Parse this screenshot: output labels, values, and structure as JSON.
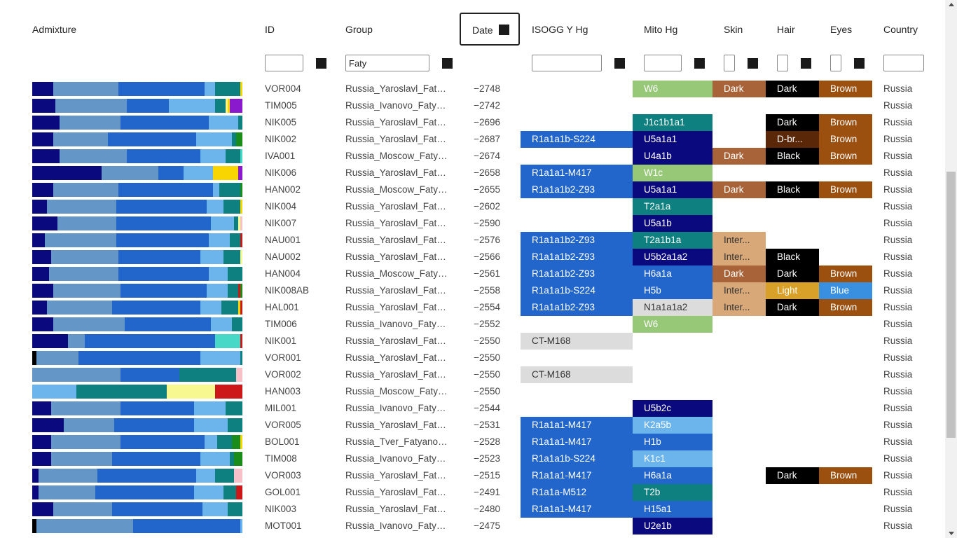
{
  "headers": {
    "admixture": "Admixture",
    "id": "ID",
    "group": "Group",
    "date": "Date",
    "ysogg": "ISOGG Y Hg",
    "mito": "Mito Hg",
    "skin": "Skin",
    "hair": "Hair",
    "eyes": "Eyes",
    "country": "Country"
  },
  "filters": {
    "id": "",
    "group": "Faty",
    "y": "",
    "mito": "",
    "skin": "",
    "hair": "",
    "eyes": "",
    "country": ""
  },
  "colors": {
    "navy": "#0a0a7e",
    "steel": "#6496c8",
    "royal": "#2266cc",
    "sky": "#6cb4ec",
    "teal": "#0e8080",
    "yellow": "#f8d400",
    "green": "#1a8c1a",
    "purple": "#8a18cc",
    "red": "#cc1818",
    "pink": "#f8c0c8",
    "lightyellow": "#f8f890",
    "turquoise": "#48d8c8",
    "black": "#000000",
    "mito_green": "#96c878",
    "skin_dark": "#a86438",
    "skin_inter": "#d8a878",
    "eye_brown": "#9c5010",
    "eye_blue": "#3a90e0",
    "hair_dbrown": "#5a2808",
    "hair_light": "#d8a028",
    "grey": "#dcdcdc"
  },
  "rows": [
    {
      "id": "VOR004",
      "group": "Russia_Yaroslavl_Fatya...",
      "date": "−2748",
      "y": "",
      "mt": "W6",
      "mt_c": "mito_green",
      "skin": "Dark",
      "skin_c": "skin_dark",
      "hair": "Dark",
      "hair_c": "black",
      "eyes": "Brown",
      "eyes_c": "eye_brown",
      "country": "Russia",
      "admix": [
        [
          "navy",
          10
        ],
        [
          "steel",
          31
        ],
        [
          "royal",
          41
        ],
        [
          "sky",
          5
        ],
        [
          "teal",
          12
        ],
        [
          "yellow",
          1
        ]
      ]
    },
    {
      "id": "TIM005",
      "group": "Russia_Ivanovo_Fatya...",
      "date": "−2742",
      "y": "",
      "mt": "",
      "skin": "",
      "hair": "",
      "eyes": "",
      "country": "Russia",
      "admix": [
        [
          "navy",
          11
        ],
        [
          "steel",
          34
        ],
        [
          "royal",
          20
        ],
        [
          "sky",
          22
        ],
        [
          "teal",
          5
        ],
        [
          "lightyellow",
          1
        ],
        [
          "yellow",
          1
        ],
        [
          "purple",
          6
        ]
      ]
    },
    {
      "id": "NIK005",
      "group": "Russia_Yaroslavl_Fatya...",
      "date": "−2696",
      "y": "",
      "mt": "J1c1b1a1",
      "mt_c": "teal",
      "skin": "",
      "hair": "Dark",
      "hair_c": "black",
      "eyes": "Brown",
      "eyes_c": "eye_brown",
      "country": "Russia",
      "admix": [
        [
          "navy",
          13
        ],
        [
          "steel",
          29
        ],
        [
          "royal",
          42
        ],
        [
          "sky",
          14
        ],
        [
          "teal",
          2
        ]
      ]
    },
    {
      "id": "NIK002",
      "group": "Russia_Yaroslavl_Fatya...",
      "date": "−2687",
      "y": "R1a1a1b-S224",
      "y_c": "royal",
      "mt": "U5a1a1",
      "mt_c": "navy",
      "skin": "",
      "hair": "D-br...",
      "hair_c": "hair_dbrown",
      "eyes": "Brown",
      "eyes_c": "eye_brown",
      "country": "Russia",
      "admix": [
        [
          "navy",
          10
        ],
        [
          "steel",
          26
        ],
        [
          "royal",
          42
        ],
        [
          "sky",
          17
        ],
        [
          "teal",
          2
        ],
        [
          "green",
          3
        ]
      ]
    },
    {
      "id": "IVA001",
      "group": "Russia_Moscow_Fatya...",
      "date": "−2674",
      "y": "",
      "mt": "U4a1b",
      "mt_c": "navy",
      "skin": "Dark",
      "skin_c": "skin_dark",
      "hair": "Black",
      "hair_c": "black",
      "eyes": "Brown",
      "eyes_c": "eye_brown",
      "country": "Russia",
      "admix": [
        [
          "navy",
          13
        ],
        [
          "steel",
          32
        ],
        [
          "royal",
          35
        ],
        [
          "sky",
          12
        ],
        [
          "teal",
          7
        ],
        [
          "turquoise",
          1
        ]
      ]
    },
    {
      "id": "NIK006",
      "group": "Russia_Yaroslavl_Fatya...",
      "date": "−2658",
      "y": "R1a1a1-M417",
      "y_c": "royal",
      "mt": "W1c",
      "mt_c": "mito_green",
      "skin": "",
      "hair": "",
      "eyes": "",
      "country": "Russia",
      "admix": [
        [
          "navy",
          33
        ],
        [
          "steel",
          27
        ],
        [
          "royal",
          12
        ],
        [
          "sky",
          14
        ],
        [
          "yellow",
          12
        ],
        [
          "purple",
          2
        ]
      ]
    },
    {
      "id": "HAN002",
      "group": "Russia_Moscow_Fatya...",
      "date": "−2655",
      "y": "R1a1a1b2-Z93",
      "y_c": "royal",
      "mt": "U5a1a1",
      "mt_c": "navy",
      "skin": "Dark",
      "skin_c": "skin_dark",
      "hair": "Black",
      "hair_c": "black",
      "eyes": "Brown",
      "eyes_c": "eye_brown",
      "country": "Russia",
      "admix": [
        [
          "navy",
          10
        ],
        [
          "steel",
          31
        ],
        [
          "royal",
          45
        ],
        [
          "sky",
          3
        ],
        [
          "teal",
          10
        ],
        [
          "green",
          1
        ]
      ]
    },
    {
      "id": "NIK004",
      "group": "Russia_Yaroslavl_Fatya...",
      "date": "−2602",
      "y": "",
      "mt": "T2a1a",
      "mt_c": "teal",
      "skin": "",
      "hair": "",
      "eyes": "",
      "country": "Russia",
      "admix": [
        [
          "navy",
          7
        ],
        [
          "steel",
          33
        ],
        [
          "royal",
          43
        ],
        [
          "sky",
          8
        ],
        [
          "teal",
          8
        ],
        [
          "yellow",
          1
        ]
      ]
    },
    {
      "id": "NIK007",
      "group": "Russia_Yaroslavl_Fatya...",
      "date": "−2590",
      "y": "",
      "mt": "U5a1b",
      "mt_c": "navy",
      "skin": "",
      "hair": "",
      "eyes": "",
      "country": "Russia",
      "admix": [
        [
          "navy",
          12
        ],
        [
          "steel",
          28
        ],
        [
          "royal",
          45
        ],
        [
          "sky",
          11
        ],
        [
          "teal",
          2
        ],
        [
          "lightyellow",
          1
        ],
        [
          "pink",
          1
        ]
      ]
    },
    {
      "id": "NAU001",
      "group": "Russia_Yaroslavl_Fatya...",
      "date": "−2576",
      "y": "R1a1a1b2-Z93",
      "y_c": "royal",
      "mt": "T2a1b1a",
      "mt_c": "teal",
      "skin": "Inter...",
      "skin_c": "skin_inter",
      "hair": "",
      "eyes": "",
      "country": "Russia",
      "admix": [
        [
          "navy",
          6
        ],
        [
          "steel",
          34
        ],
        [
          "royal",
          44
        ],
        [
          "sky",
          10
        ],
        [
          "teal",
          5
        ],
        [
          "red",
          1
        ]
      ]
    },
    {
      "id": "NAU002",
      "group": "Russia_Yaroslavl_Fatya...",
      "date": "−2566",
      "y": "R1a1a1b2-Z93",
      "y_c": "royal",
      "mt": "U5b2a1a2",
      "mt_c": "navy",
      "skin": "Inter...",
      "skin_c": "skin_inter",
      "hair": "Black",
      "hair_c": "black",
      "eyes": "",
      "country": "Russia",
      "admix": [
        [
          "navy",
          9
        ],
        [
          "steel",
          32
        ],
        [
          "royal",
          39
        ],
        [
          "sky",
          11
        ],
        [
          "teal",
          8
        ],
        [
          "lightyellow",
          1
        ]
      ]
    },
    {
      "id": "HAN004",
      "group": "Russia_Moscow_Fatya...",
      "date": "−2561",
      "y": "R1a1a1b2-Z93",
      "y_c": "royal",
      "mt": "H6a1a",
      "mt_c": "royal",
      "skin": "Dark",
      "skin_c": "skin_dark",
      "hair": "Dark",
      "hair_c": "black",
      "eyes": "Brown",
      "eyes_c": "eye_brown",
      "country": "Russia",
      "admix": [
        [
          "navy",
          8
        ],
        [
          "steel",
          33
        ],
        [
          "royal",
          43
        ],
        [
          "sky",
          9
        ],
        [
          "teal",
          7
        ]
      ]
    },
    {
      "id": "NIK008AB",
      "group": "Russia_Yaroslavl_Fatya...",
      "date": "−2558",
      "y": "R1a1a1b-S224",
      "y_c": "royal",
      "mt": "H5b",
      "mt_c": "royal",
      "skin": "Inter...",
      "skin_c": "skin_inter",
      "hair": "Light",
      "hair_c": "hair_light",
      "eyes": "Blue",
      "eyes_c": "eye_blue",
      "country": "Russia",
      "admix": [
        [
          "navy",
          10
        ],
        [
          "steel",
          32
        ],
        [
          "royal",
          41
        ],
        [
          "sky",
          10
        ],
        [
          "teal",
          5
        ],
        [
          "red",
          1
        ],
        [
          "green",
          1
        ]
      ]
    },
    {
      "id": "HAL001",
      "group": "Russia_Yaroslavl_Fatya...",
      "date": "−2554",
      "y": "R1a1a1b2-Z93",
      "y_c": "royal",
      "mt": "N1a1a1a2",
      "mt_c": "grey",
      "skin": "Inter...",
      "skin_c": "skin_inter",
      "hair": "Dark",
      "hair_c": "black",
      "eyes": "Brown",
      "eyes_c": "eye_brown",
      "country": "Russia",
      "admix": [
        [
          "navy",
          7
        ],
        [
          "steel",
          31
        ],
        [
          "royal",
          42
        ],
        [
          "sky",
          10
        ],
        [
          "teal",
          8
        ],
        [
          "yellow",
          1
        ],
        [
          "red",
          1
        ]
      ]
    },
    {
      "id": "TIM006",
      "group": "Russia_Ivanovo_Fatya...",
      "date": "−2552",
      "y": "",
      "mt": "W6",
      "mt_c": "mito_green",
      "skin": "",
      "hair": "",
      "eyes": "",
      "country": "Russia",
      "admix": [
        [
          "navy",
          10
        ],
        [
          "steel",
          34
        ],
        [
          "royal",
          41
        ],
        [
          "sky",
          10
        ],
        [
          "teal",
          5
        ]
      ]
    },
    {
      "id": "NIK001",
      "group": "Russia_Yaroslavl_Fatya...",
      "date": "−2550",
      "y": "CT-M168",
      "y_c": "grey",
      "mt": "",
      "skin": "",
      "hair": "",
      "eyes": "",
      "country": "Russia",
      "admix": [
        [
          "navy",
          17
        ],
        [
          "steel",
          8
        ],
        [
          "royal",
          62
        ],
        [
          "turquoise",
          12
        ],
        [
          "red",
          1
        ]
      ]
    },
    {
      "id": "VOR001",
      "group": "Russia_Yaroslavl_Fatya...",
      "date": "−2550",
      "y": "",
      "mt": "",
      "skin": "",
      "hair": "",
      "eyes": "",
      "country": "Russia",
      "admix": [
        [
          "black",
          2
        ],
        [
          "steel",
          20
        ],
        [
          "royal",
          58
        ],
        [
          "sky",
          19
        ],
        [
          "teal",
          1
        ]
      ]
    },
    {
      "id": "VOR002",
      "group": "Russia_Yaroslavl_Fatya...",
      "date": "−2550",
      "y": "CT-M168",
      "y_c": "grey",
      "mt": "",
      "skin": "",
      "hair": "",
      "eyes": "",
      "country": "Russia",
      "admix": [
        [
          "steel",
          42
        ],
        [
          "royal",
          28
        ],
        [
          "teal",
          27
        ],
        [
          "pink",
          3
        ]
      ]
    },
    {
      "id": "HAN003",
      "group": "Russia_Moscow_Fatya...",
      "date": "−2550",
      "y": "",
      "mt": "",
      "skin": "",
      "hair": "",
      "eyes": "",
      "country": "Russia",
      "admix": [
        [
          "sky",
          21
        ],
        [
          "teal",
          43
        ],
        [
          "lightyellow",
          23
        ],
        [
          "red",
          13
        ]
      ]
    },
    {
      "id": "MIL001",
      "group": "Russia_Ivanovo_Fatya...",
      "date": "−2544",
      "y": "",
      "mt": "U5b2c",
      "mt_c": "navy",
      "skin": "",
      "hair": "",
      "eyes": "",
      "country": "Russia",
      "admix": [
        [
          "navy",
          9
        ],
        [
          "steel",
          33
        ],
        [
          "royal",
          35
        ],
        [
          "sky",
          15
        ],
        [
          "teal",
          8
        ]
      ]
    },
    {
      "id": "VOR005",
      "group": "Russia_Yaroslavl_Fatya...",
      "date": "−2531",
      "y": "R1a1a1-M417",
      "y_c": "royal",
      "mt": "K2a5b",
      "mt_c": "sky",
      "skin": "",
      "hair": "",
      "eyes": "",
      "country": "Russia",
      "admix": [
        [
          "navy",
          15
        ],
        [
          "steel",
          24
        ],
        [
          "royal",
          38
        ],
        [
          "sky",
          16
        ],
        [
          "teal",
          7
        ]
      ]
    },
    {
      "id": "BOL001",
      "group": "Russia_Tver_Fatyanov...",
      "date": "−2528",
      "y": "R1a1a1-M417",
      "y_c": "royal",
      "mt": "H1b",
      "mt_c": "royal",
      "skin": "",
      "hair": "",
      "eyes": "",
      "country": "Russia",
      "admix": [
        [
          "navy",
          9
        ],
        [
          "steel",
          33
        ],
        [
          "royal",
          40
        ],
        [
          "sky",
          6
        ],
        [
          "teal",
          7
        ],
        [
          "green",
          4
        ],
        [
          "yellow",
          1
        ]
      ]
    },
    {
      "id": "TIM008",
      "group": "Russia_Ivanovo_Fatya...",
      "date": "−2523",
      "y": "R1a1a1b-S224",
      "y_c": "royal",
      "mt": "K1c1",
      "mt_c": "sky",
      "skin": "",
      "hair": "",
      "eyes": "",
      "country": "Russia",
      "admix": [
        [
          "navy",
          9
        ],
        [
          "steel",
          29
        ],
        [
          "royal",
          42
        ],
        [
          "sky",
          14
        ],
        [
          "teal",
          2
        ],
        [
          "green",
          4
        ]
      ]
    },
    {
      "id": "VOR003",
      "group": "Russia_Yaroslavl_Fatya...",
      "date": "−2515",
      "y": "R1a1a1-M417",
      "y_c": "royal",
      "mt": "H6a1a",
      "mt_c": "royal",
      "skin": "",
      "hair": "Dark",
      "hair_c": "black",
      "eyes": "Brown",
      "eyes_c": "eye_brown",
      "country": "Russia",
      "admix": [
        [
          "navy",
          3
        ],
        [
          "steel",
          28
        ],
        [
          "royal",
          47
        ],
        [
          "sky",
          9
        ],
        [
          "teal",
          9
        ],
        [
          "pink",
          4
        ]
      ]
    },
    {
      "id": "GOL001",
      "group": "Russia_Yaroslavl_Fatya...",
      "date": "−2491",
      "y": "R1a1a-M512",
      "y_c": "royal",
      "mt": "T2b",
      "mt_c": "teal",
      "skin": "",
      "hair": "",
      "eyes": "",
      "country": "Russia",
      "admix": [
        [
          "navy",
          3
        ],
        [
          "steel",
          27
        ],
        [
          "royal",
          47
        ],
        [
          "sky",
          14
        ],
        [
          "teal",
          6
        ],
        [
          "red",
          3
        ]
      ]
    },
    {
      "id": "NIK003",
      "group": "Russia_Yaroslavl_Fatya...",
      "date": "−2480",
      "y": "R1a1a1-M417",
      "y_c": "royal",
      "mt": "H15a1",
      "mt_c": "royal",
      "skin": "",
      "hair": "",
      "eyes": "",
      "country": "Russia",
      "admix": [
        [
          "navy",
          10
        ],
        [
          "steel",
          28
        ],
        [
          "royal",
          43
        ],
        [
          "sky",
          12
        ],
        [
          "teal",
          7
        ]
      ]
    },
    {
      "id": "MOT001",
      "group": "Russia_Ivanovo_Fatya...",
      "date": "−2475",
      "y": "",
      "mt": "U2e1b",
      "mt_c": "navy",
      "skin": "",
      "hair": "",
      "eyes": "",
      "country": "Russia",
      "admix": [
        [
          "black",
          2
        ],
        [
          "steel",
          46
        ],
        [
          "royal",
          51
        ],
        [
          "sky",
          1
        ]
      ]
    }
  ]
}
